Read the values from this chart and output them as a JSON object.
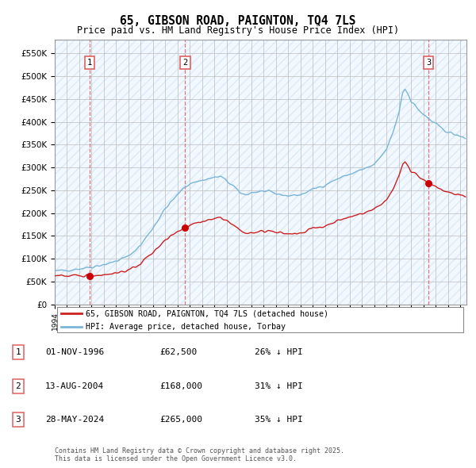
{
  "title": "65, GIBSON ROAD, PAIGNTON, TQ4 7LS",
  "subtitle": "Price paid vs. HM Land Registry's House Price Index (HPI)",
  "ylim": [
    0,
    580000
  ],
  "yticks": [
    0,
    50000,
    100000,
    150000,
    200000,
    250000,
    300000,
    350000,
    400000,
    450000,
    500000,
    550000
  ],
  "ytick_labels": [
    "£0",
    "£50K",
    "£100K",
    "£150K",
    "£200K",
    "£250K",
    "£300K",
    "£350K",
    "£400K",
    "£450K",
    "£500K",
    "£550K"
  ],
  "xlim_start": 1994.0,
  "xlim_end": 2027.5,
  "hpi_color": "#7ab5d8",
  "price_color": "#cc2020",
  "sale_marker_color": "#cc0000",
  "dashed_line_color": "#e06060",
  "grid_color": "#bbbbbb",
  "sale_points": [
    {
      "year": 1996.833,
      "price": 62500,
      "label": "1"
    },
    {
      "year": 2004.617,
      "price": 168000,
      "label": "2"
    },
    {
      "year": 2024.4,
      "price": 265000,
      "label": "3"
    }
  ],
  "legend_line1": "65, GIBSON ROAD, PAIGNTON, TQ4 7LS (detached house)",
  "legend_line2": "HPI: Average price, detached house, Torbay",
  "table_rows": [
    {
      "num": "1",
      "date": "01-NOV-1996",
      "price": "£62,500",
      "pct": "26% ↓ HPI"
    },
    {
      "num": "2",
      "date": "13-AUG-2004",
      "price": "£168,000",
      "pct": "31% ↓ HPI"
    },
    {
      "num": "3",
      "date": "28-MAY-2024",
      "price": "£265,000",
      "pct": "35% ↓ HPI"
    }
  ],
  "footnote": "Contains HM Land Registry data © Crown copyright and database right 2025.\nThis data is licensed under the Open Government Licence v3.0."
}
